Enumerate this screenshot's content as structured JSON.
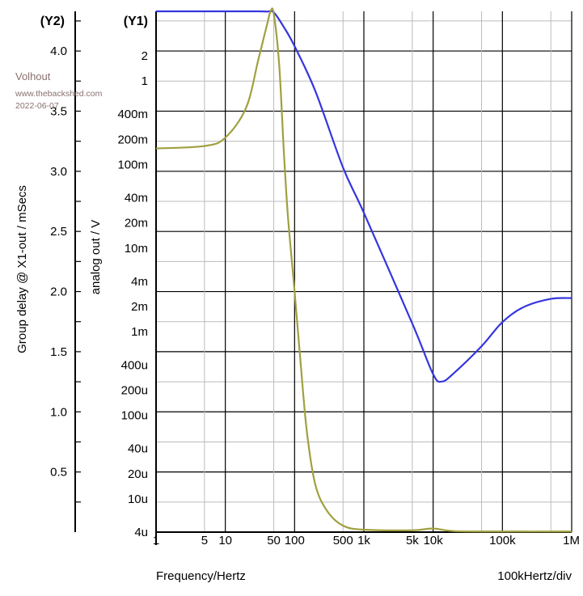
{
  "chart_data": {
    "type": "line",
    "x_axis": {
      "label": "Frequency/Hertz",
      "scale": "log",
      "range": [
        1,
        1000000
      ],
      "ticks": [
        {
          "value": 1,
          "label": "1"
        },
        {
          "value": 5,
          "label": "5"
        },
        {
          "value": 10,
          "label": "10"
        },
        {
          "value": 50,
          "label": "50"
        },
        {
          "value": 100,
          "label": "100"
        },
        {
          "value": 500,
          "label": "500"
        },
        {
          "value": 1000,
          "label": "1k"
        },
        {
          "value": 5000,
          "label": "5k"
        },
        {
          "value": 10000,
          "label": "10k"
        },
        {
          "value": 100000,
          "label": "100k"
        },
        {
          "value": 1000000,
          "label": "1M"
        }
      ],
      "div_label": "100kHertz/div"
    },
    "y1_axis": {
      "tag": "(Y1)",
      "label": "analog out / V",
      "scale": "log",
      "range": [
        4e-06,
        6.8
      ],
      "ticks": [
        {
          "value": 2,
          "label": "2"
        },
        {
          "value": 1,
          "label": "1"
        },
        {
          "value": 0.4,
          "label": "400m"
        },
        {
          "value": 0.2,
          "label": "200m"
        },
        {
          "value": 0.1,
          "label": "100m"
        },
        {
          "value": 0.04,
          "label": "40m"
        },
        {
          "value": 0.02,
          "label": "20m"
        },
        {
          "value": 0.01,
          "label": "10m"
        },
        {
          "value": 0.004,
          "label": "4m"
        },
        {
          "value": 0.002,
          "label": "2m"
        },
        {
          "value": 0.001,
          "label": "1m"
        },
        {
          "value": 0.0004,
          "label": "400u"
        },
        {
          "value": 0.0002,
          "label": "200u"
        },
        {
          "value": 0.0001,
          "label": "100u"
        },
        {
          "value": 4e-05,
          "label": "40u"
        },
        {
          "value": 2e-05,
          "label": "20u"
        },
        {
          "value": 1e-05,
          "label": "10u"
        },
        {
          "value": 4e-06,
          "label": "4u"
        }
      ]
    },
    "y2_axis": {
      "tag": "(Y2)",
      "label": "Group delay @ X1-out / mSecs",
      "scale": "linear",
      "range": [
        0,
        4.33
      ],
      "ticks": [
        {
          "value": 4.0,
          "label": "4.0"
        },
        {
          "value": 3.5,
          "label": "3.5"
        },
        {
          "value": 3.0,
          "label": "3.0"
        },
        {
          "value": 2.5,
          "label": "2.5"
        },
        {
          "value": 2.0,
          "label": "2.0"
        },
        {
          "value": 1.5,
          "label": "1.5"
        },
        {
          "value": 1.0,
          "label": "1.0"
        },
        {
          "value": 0.5,
          "label": "0.5"
        }
      ],
      "minor_step": 0.25
    },
    "grid": true,
    "series": [
      {
        "axis": "y1",
        "color": "#3535e0",
        "x": [
          1,
          10,
          30,
          40,
          50,
          70,
          100,
          200,
          500,
          1000,
          5000,
          10000,
          13400,
          20000,
          50000,
          100000,
          200000,
          500000,
          1000000
        ],
        "y": [
          6.8,
          6.8,
          6.8,
          6.75,
          6.6,
          4.4,
          2.6,
          0.75,
          0.092,
          0.0264,
          0.00125,
          0.00031,
          0.000253,
          0.00032,
          0.00067,
          0.0013,
          0.00196,
          0.00247,
          0.00252
        ]
      },
      {
        "axis": "y2",
        "color": "#a0a040",
        "x": [
          1,
          5,
          10,
          20,
          30,
          40,
          45,
          50,
          60,
          70,
          80,
          100,
          120,
          150,
          200,
          300,
          500,
          1000,
          5000,
          10000,
          20000,
          100000,
          1000000
        ],
        "y": [
          3.19,
          3.21,
          3.28,
          3.53,
          3.93,
          4.22,
          4.33,
          4.31,
          3.88,
          3.16,
          2.63,
          2.0,
          1.46,
          0.84,
          0.39,
          0.17,
          0.054,
          0.02,
          0.015,
          0.03,
          0.008,
          0.005,
          0.005
        ]
      }
    ]
  },
  "watermark": {
    "author": "Volhout",
    "site": "www.thebackshed.com",
    "date": "2022-06-07"
  }
}
